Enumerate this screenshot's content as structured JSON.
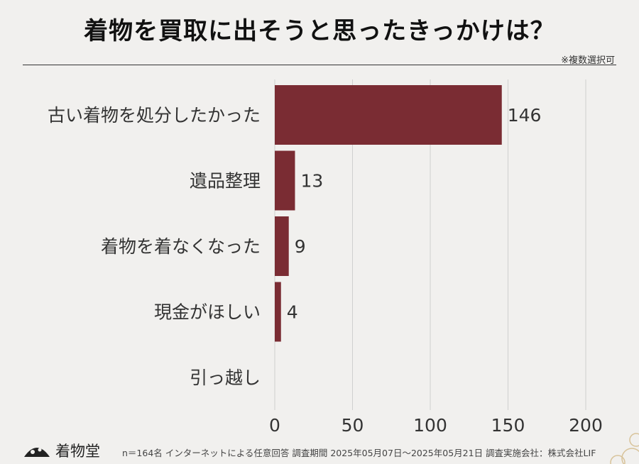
{
  "title": "着物を買取に出そうと思ったきっかけは？",
  "note": "※複数選択可",
  "footer": {
    "logo": "着物堂",
    "text": "n＝164名 インターネットによる任意回答 調査期間 2025年05月07日〜2025年05月21日 調査実施会社：株式会社LIF"
  },
  "colors": {
    "bar": "#7a2c33",
    "grid": "#cfcfcf",
    "text": "#333333"
  },
  "chart_data": {
    "type": "bar",
    "orientation": "horizontal",
    "categories": [
      "古い着物を処分したかった",
      "遺品整理",
      "着物を着なくなった",
      "現金がほしい",
      "引っ越し"
    ],
    "values": [
      146,
      13,
      9,
      4,
      0
    ],
    "xlim": [
      0,
      200
    ],
    "xticks": [
      0,
      50,
      100,
      150,
      200
    ],
    "grid": true
  }
}
